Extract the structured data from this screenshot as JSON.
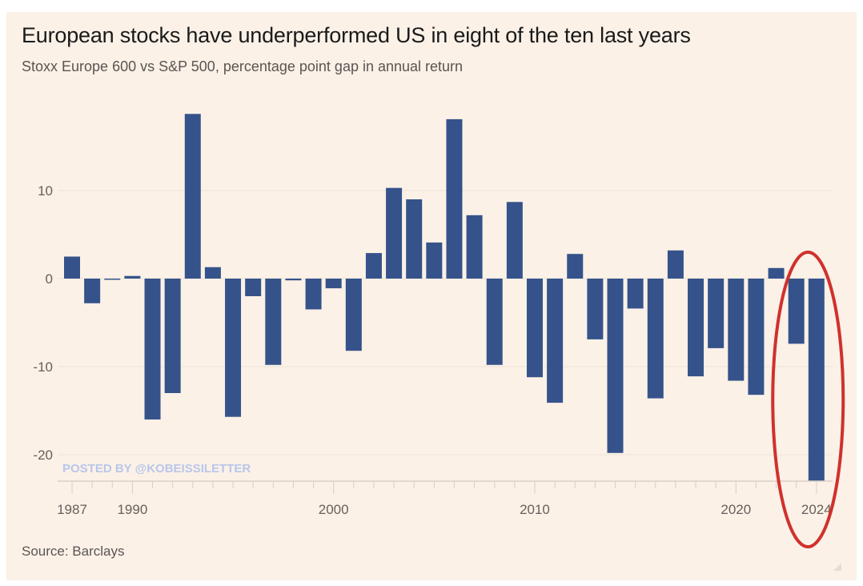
{
  "chart_data": {
    "type": "bar",
    "title": "European stocks have underperformed US in eight of the ten last years",
    "subtitle": "Stoxx Europe 600 vs S&P 500, percentage point gap in annual return",
    "xlabel": "",
    "ylabel": "",
    "source": "Source: Barclays",
    "watermark": "POSTED BY @KOBEISSILETTER",
    "ylim": [
      -23,
      20
    ],
    "yticks": [
      10,
      0,
      -10,
      -20
    ],
    "ytick_labels": [
      "10",
      "0",
      "-10",
      "-20"
    ],
    "xtick_labels": [
      "1987",
      "1990",
      "2000",
      "2010",
      "2020",
      "2024"
    ],
    "xtick_years": [
      1987,
      1990,
      2000,
      2010,
      2020,
      2024
    ],
    "grid": true,
    "bar_color": "#35538a",
    "highlight": {
      "years": [
        2023,
        2024
      ],
      "shape": "ellipse",
      "color": "#d0312d"
    },
    "categories": [
      1987,
      1988,
      1989,
      1990,
      1991,
      1992,
      1993,
      1994,
      1995,
      1996,
      1997,
      1998,
      1999,
      2000,
      2001,
      2002,
      2003,
      2004,
      2005,
      2006,
      2007,
      2008,
      2009,
      2010,
      2011,
      2012,
      2013,
      2014,
      2015,
      2016,
      2017,
      2018,
      2019,
      2020,
      2021,
      2022,
      2023,
      2024
    ],
    "values": [
      2.5,
      -2.8,
      -0.1,
      0.3,
      -16.0,
      -13.0,
      18.7,
      1.3,
      -15.7,
      -2.0,
      -9.8,
      -0.2,
      -3.5,
      -1.1,
      -8.2,
      2.9,
      10.3,
      9.0,
      4.1,
      18.1,
      7.2,
      -9.8,
      8.7,
      -11.2,
      -14.1,
      2.8,
      -6.9,
      -19.8,
      -3.4,
      -13.6,
      3.2,
      -11.1,
      -7.9,
      -11.6,
      -13.2,
      1.2,
      -7.4,
      -23.0
    ]
  }
}
